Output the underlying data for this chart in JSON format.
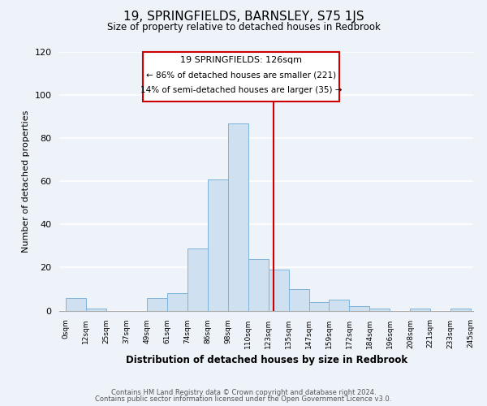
{
  "title": "19, SPRINGFIELDS, BARNSLEY, S75 1JS",
  "subtitle": "Size of property relative to detached houses in Redbrook",
  "xlabel": "Distribution of detached houses by size in Redbrook",
  "ylabel": "Number of detached properties",
  "footer_line1": "Contains HM Land Registry data © Crown copyright and database right 2024.",
  "footer_line2": "Contains public sector information licensed under the Open Government Licence v3.0.",
  "bar_labels": [
    "0sqm",
    "12sqm",
    "25sqm",
    "37sqm",
    "49sqm",
    "61sqm",
    "74sqm",
    "86sqm",
    "98sqm",
    "110sqm",
    "123sqm",
    "135sqm",
    "147sqm",
    "159sqm",
    "172sqm",
    "184sqm",
    "196sqm",
    "208sqm",
    "221sqm",
    "233sqm",
    "245sqm"
  ],
  "bar_values": [
    6,
    1,
    0,
    0,
    6,
    8,
    29,
    61,
    87,
    24,
    19,
    10,
    4,
    5,
    2,
    1,
    0,
    1,
    0,
    1
  ],
  "bar_color": "#cfe0f0",
  "bar_edge_color": "#7fb3d9",
  "marker_label": "19 SPRINGFIELDS: 126sqm",
  "annotation_line1": "← 86% of detached houses are smaller (221)",
  "annotation_line2": "14% of semi-detached houses are larger (35) →",
  "annotation_box_edge": "#cc0000",
  "marker_line_color": "#cc0000",
  "ylim": [
    0,
    120
  ],
  "yticks": [
    0,
    20,
    40,
    60,
    80,
    100,
    120
  ],
  "bg_color": "#eef2f9",
  "plot_bg_color": "#eef2f9",
  "grid_color": "#ffffff"
}
